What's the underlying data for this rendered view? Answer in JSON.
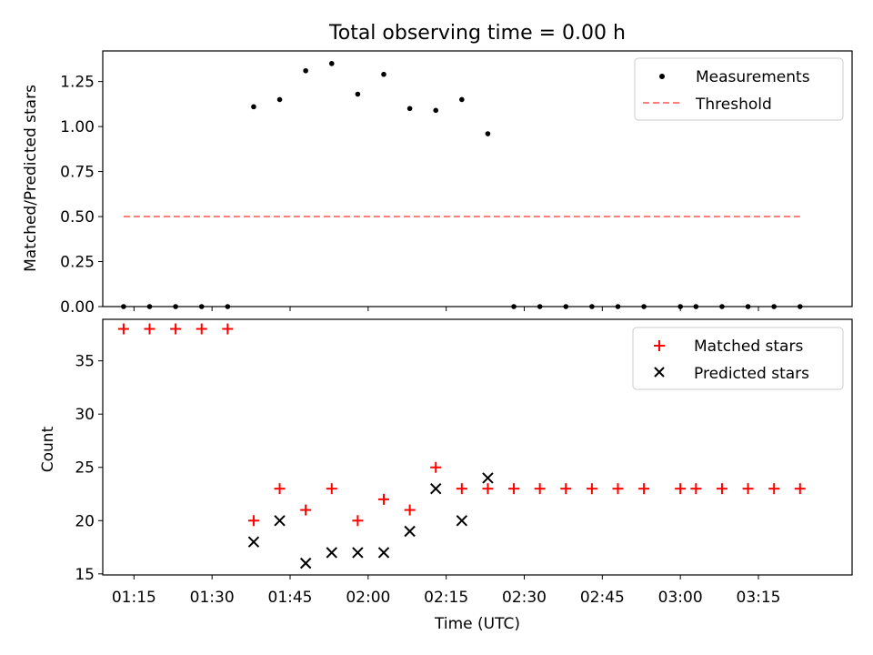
{
  "title": "Total observing time = 0.00 h",
  "chart_data": [
    {
      "type": "scatter",
      "panel": "top",
      "ylabel": "Matched/Predicted stars",
      "ylim": [
        0,
        1.42
      ],
      "yticks": [
        "0.00",
        "0.25",
        "0.50",
        "0.75",
        "1.00",
        "1.25"
      ],
      "legend": {
        "position": "top-right"
      },
      "series": [
        {
          "name": "Measurements",
          "marker": "dot",
          "color": "#000000",
          "x": [
            "01:13",
            "01:18",
            "01:23",
            "01:28",
            "01:33",
            "01:38",
            "01:43",
            "01:48",
            "01:53",
            "01:58",
            "02:03",
            "02:08",
            "02:13",
            "02:18",
            "02:23",
            "02:28",
            "02:33",
            "02:38",
            "02:43",
            "02:48",
            "02:53",
            "03:00",
            "03:03",
            "03:08",
            "03:13",
            "03:18",
            "03:23"
          ],
          "y": [
            0,
            0,
            0,
            0,
            0,
            1.11,
            1.15,
            1.31,
            1.35,
            1.18,
            1.29,
            1.1,
            1.09,
            1.15,
            0.96,
            0,
            0,
            0,
            0,
            0,
            0,
            0,
            0,
            0,
            0,
            0,
            0
          ]
        },
        {
          "name": "Threshold",
          "marker": "dashed-line",
          "color": "#ff7f7f",
          "x": [
            "01:13",
            "03:23"
          ],
          "y": [
            0.5,
            0.5
          ]
        }
      ]
    },
    {
      "type": "scatter",
      "panel": "bottom",
      "xlabel": "Time (UTC)",
      "ylabel": "Count",
      "ylim": [
        14.9,
        38.9
      ],
      "yticks": [
        "15",
        "20",
        "25",
        "30",
        "35"
      ],
      "xlim": [
        "01:09",
        "03:33"
      ],
      "xticks": [
        "01:15",
        "01:30",
        "01:45",
        "02:00",
        "02:15",
        "02:30",
        "02:45",
        "03:00",
        "03:15"
      ],
      "legend": {
        "position": "top-right"
      },
      "series": [
        {
          "name": "Matched stars",
          "marker": "plus",
          "color": "#ff0000",
          "x": [
            "01:13",
            "01:18",
            "01:23",
            "01:28",
            "01:33",
            "01:38",
            "01:43",
            "01:48",
            "01:53",
            "01:58",
            "02:03",
            "02:08",
            "02:13",
            "02:18",
            "02:23",
            "02:28",
            "02:33",
            "02:38",
            "02:43",
            "02:48",
            "02:53",
            "03:00",
            "03:03",
            "03:08",
            "03:13",
            "03:18",
            "03:23"
          ],
          "y": [
            38,
            38,
            38,
            38,
            38,
            20,
            23,
            21,
            23,
            20,
            22,
            21,
            25,
            23,
            23,
            23,
            23,
            23,
            23,
            23,
            23,
            23,
            23,
            23,
            23,
            23,
            23
          ]
        },
        {
          "name": "Predicted stars",
          "marker": "x",
          "color": "#000000",
          "x": [
            "01:38",
            "01:43",
            "01:48",
            "01:53",
            "01:58",
            "02:03",
            "02:08",
            "02:13",
            "02:18",
            "02:23"
          ],
          "y": [
            18,
            20,
            16,
            17,
            17,
            17,
            19,
            23,
            20,
            24
          ]
        }
      ]
    }
  ]
}
